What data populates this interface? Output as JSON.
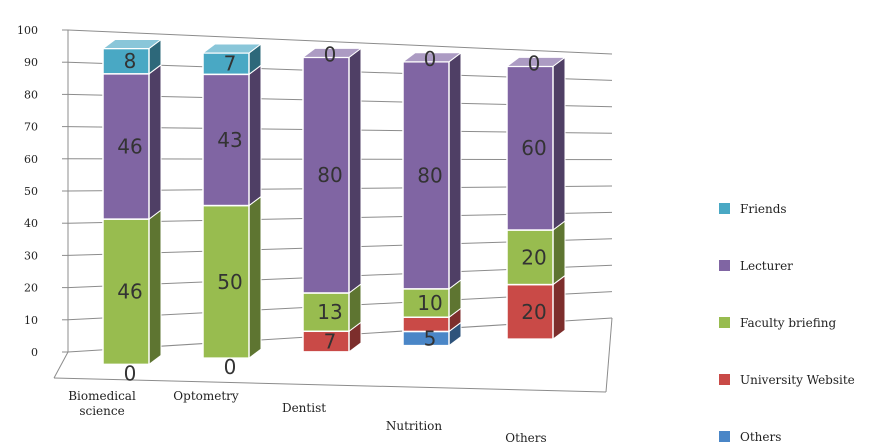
{
  "chart_data": {
    "type": "bar",
    "stacked": true,
    "three_d": true,
    "title": "",
    "xlabel": "",
    "ylabel": "",
    "ylim": [
      0,
      100
    ],
    "yticks": [
      0,
      10,
      20,
      30,
      40,
      50,
      60,
      70,
      80,
      90,
      100
    ],
    "grid": true,
    "legend_position": "right",
    "categories": [
      [
        "Biomedical",
        "science"
      ],
      [
        "Optometry"
      ],
      [
        "Dentist"
      ],
      [
        "Nutrition"
      ],
      [
        "Others"
      ]
    ],
    "series": [
      {
        "name": "Others",
        "color": "#4a86c7",
        "values": [
          0,
          0,
          0,
          5,
          0
        ]
      },
      {
        "name": "University Website",
        "color": "#c94a47",
        "values": [
          0,
          0,
          7,
          5,
          20
        ]
      },
      {
        "name": "Faculty briefing",
        "color": "#98bc4f",
        "values": [
          46,
          50,
          13,
          10,
          20
        ]
      },
      {
        "name": "Lecturer",
        "color": "#8065a3",
        "values": [
          46,
          43,
          80,
          80,
          60
        ]
      },
      {
        "name": "Friends",
        "color": "#49a8c4",
        "values": [
          8,
          7,
          0,
          0,
          0
        ]
      }
    ],
    "segment_labels": [
      [
        {
          "series": 1,
          "text": "0"
        },
        {
          "series": 2,
          "text": "46"
        },
        {
          "series": 3,
          "text": "46"
        },
        {
          "series": 4,
          "text": "8"
        }
      ],
      [
        {
          "series": 1,
          "text": "0"
        },
        {
          "series": 2,
          "text": "50"
        },
        {
          "series": 3,
          "text": "43"
        },
        {
          "series": 4,
          "text": "7"
        }
      ],
      [
        {
          "series": 1,
          "text": "7"
        },
        {
          "series": 2,
          "text": "13"
        },
        {
          "series": 3,
          "text": "80"
        },
        {
          "series": 4,
          "text": "0"
        }
      ],
      [
        {
          "series": 0,
          "text": "5"
        },
        {
          "series": 2,
          "text": "10"
        },
        {
          "series": 3,
          "text": "80"
        },
        {
          "series": 4,
          "text": "0"
        }
      ],
      [
        {
          "series": 1,
          "text": "20"
        },
        {
          "series": 2,
          "text": "20"
        },
        {
          "series": 3,
          "text": "60"
        },
        {
          "series": 4,
          "text": "0"
        }
      ]
    ],
    "legend_order": [
      4,
      3,
      2,
      1,
      0
    ]
  }
}
